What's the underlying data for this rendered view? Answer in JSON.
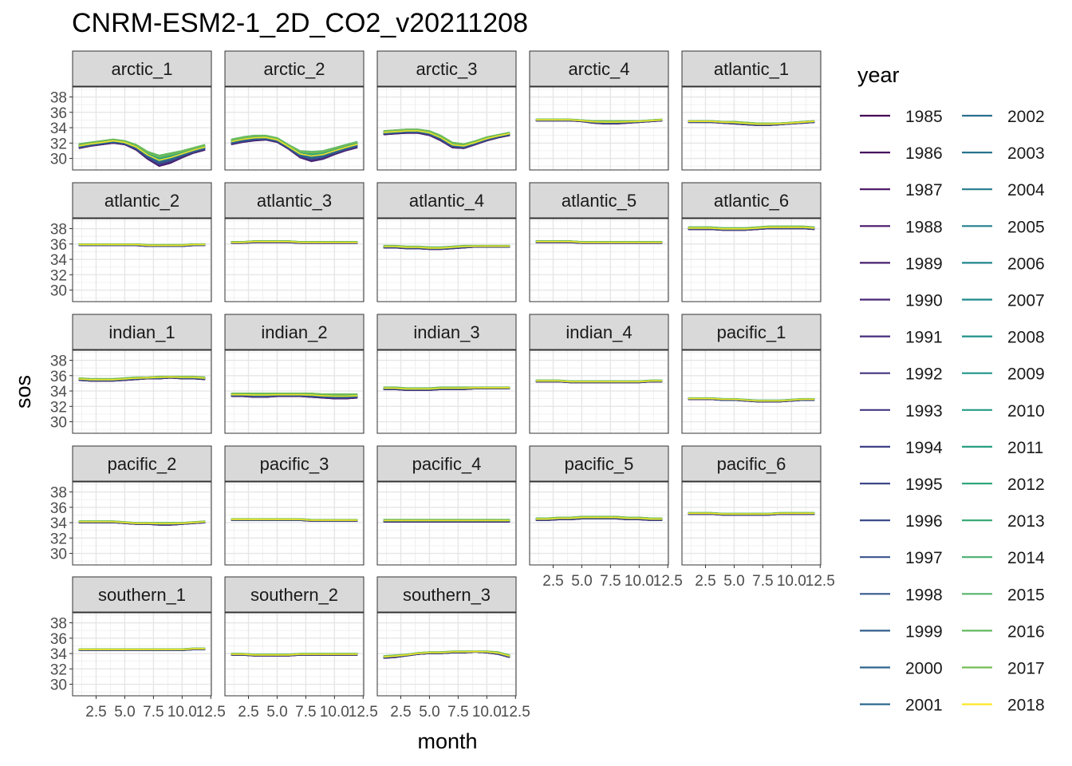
{
  "chart_data": {
    "type": "line",
    "title": "CNRM-ESM2-1_2D_CO2_v20211208",
    "xlabel": "month",
    "ylabel": "sos",
    "legend_title": "year",
    "legend_position": "right",
    "grid": true,
    "x_ticks": [
      2.5,
      5.0,
      7.5,
      10.0,
      12.5
    ],
    "x_tick_labels": [
      "2.5",
      "5.0",
      "7.5",
      "10.0",
      "12.5"
    ],
    "y_ticks": [
      30,
      32,
      34,
      36,
      38
    ],
    "y_tick_labels": [
      "30",
      "32",
      "34",
      "36",
      "38"
    ],
    "xlim": [
      0.45,
      12.55
    ],
    "ylim": [
      28.5,
      39.3
    ],
    "years": [
      "1985",
      "1986",
      "1987",
      "1988",
      "1989",
      "1990",
      "1991",
      "1992",
      "1993",
      "1994",
      "1995",
      "1996",
      "1997",
      "1998",
      "1999",
      "2000",
      "2001",
      "2002",
      "2003",
      "2004",
      "2005",
      "2006",
      "2007",
      "2008",
      "2009",
      "2010",
      "2011",
      "2012",
      "2013",
      "2014",
      "2015",
      "2016",
      "2017",
      "2018"
    ],
    "year_colors": [
      "#440154",
      "#46085C",
      "#471063",
      "#481769",
      "#481E6F",
      "#472575",
      "#462C7B",
      "#45337F",
      "#433983",
      "#404087",
      "#3E468A",
      "#3B4C8B",
      "#38528C",
      "#35588D",
      "#325E8D",
      "#2F648E",
      "#2C698E",
      "#2A6F8E",
      "#27748E",
      "#257A8E",
      "#227F8E",
      "#20858D",
      "#1F8A8C",
      "#1E908A",
      "#1F9588",
      "#229B85",
      "#28A081",
      "#30A57C",
      "#3AAA77",
      "#47AF70",
      "#55B468",
      "#64B85F",
      "#75BD55",
      "#FDE725"
    ],
    "panels": [
      {
        "name": "arctic_1",
        "months": [
          1,
          2,
          3,
          4,
          5,
          6,
          7,
          8,
          9,
          10,
          11,
          12
        ],
        "upper": [
          31.9,
          32.1,
          32.3,
          32.5,
          32.3,
          31.8,
          30.9,
          30.4,
          30.7,
          31.0,
          31.4,
          31.8
        ],
        "lower": [
          31.3,
          31.6,
          31.8,
          32.0,
          31.8,
          31.1,
          29.9,
          29.0,
          29.4,
          30.1,
          30.7,
          31.1
        ]
      },
      {
        "name": "arctic_2",
        "months": [
          1,
          2,
          3,
          4,
          5,
          6,
          7,
          8,
          9,
          10,
          11,
          12
        ],
        "upper": [
          32.5,
          32.8,
          33.0,
          33.0,
          32.7,
          31.8,
          31.0,
          30.9,
          31.0,
          31.4,
          31.8,
          32.2
        ],
        "lower": [
          31.8,
          32.1,
          32.3,
          32.4,
          32.1,
          31.2,
          30.1,
          29.6,
          29.9,
          30.5,
          31.0,
          31.4
        ]
      },
      {
        "name": "arctic_3",
        "months": [
          1,
          2,
          3,
          4,
          5,
          6,
          7,
          8,
          9,
          10,
          11,
          12
        ],
        "upper": [
          33.6,
          33.7,
          33.8,
          33.8,
          33.6,
          33.0,
          32.1,
          31.9,
          32.3,
          32.8,
          33.1,
          33.4
        ],
        "lower": [
          33.1,
          33.2,
          33.3,
          33.3,
          33.0,
          32.3,
          31.4,
          31.3,
          31.8,
          32.3,
          32.7,
          33.0
        ]
      },
      {
        "name": "arctic_4",
        "months": [
          1,
          2,
          3,
          4,
          5,
          6,
          7,
          8,
          9,
          10,
          11,
          12
        ],
        "upper": [
          35.1,
          35.1,
          35.1,
          35.1,
          35.0,
          34.9,
          34.9,
          34.9,
          34.9,
          34.9,
          35.0,
          35.1
        ],
        "lower": [
          34.9,
          34.9,
          34.9,
          34.9,
          34.8,
          34.6,
          34.5,
          34.5,
          34.6,
          34.7,
          34.8,
          34.9
        ]
      },
      {
        "name": "atlantic_1",
        "months": [
          1,
          2,
          3,
          4,
          5,
          6,
          7,
          8,
          9,
          10,
          11,
          12
        ],
        "upper": [
          34.9,
          34.9,
          34.9,
          34.8,
          34.8,
          34.7,
          34.6,
          34.6,
          34.6,
          34.7,
          34.8,
          34.9
        ],
        "lower": [
          34.7,
          34.7,
          34.7,
          34.6,
          34.5,
          34.4,
          34.3,
          34.3,
          34.4,
          34.5,
          34.6,
          34.7
        ]
      },
      {
        "name": "atlantic_2",
        "months": [
          1,
          2,
          3,
          4,
          5,
          6,
          7,
          8,
          9,
          10,
          11,
          12
        ],
        "upper": [
          36.0,
          36.0,
          36.0,
          36.0,
          36.0,
          36.0,
          35.9,
          35.9,
          35.9,
          35.9,
          36.0,
          36.0
        ],
        "lower": [
          35.8,
          35.8,
          35.8,
          35.8,
          35.8,
          35.8,
          35.7,
          35.7,
          35.7,
          35.7,
          35.8,
          35.8
        ]
      },
      {
        "name": "atlantic_3",
        "months": [
          1,
          2,
          3,
          4,
          5,
          6,
          7,
          8,
          9,
          10,
          11,
          12
        ],
        "upper": [
          36.3,
          36.3,
          36.4,
          36.4,
          36.4,
          36.4,
          36.3,
          36.3,
          36.3,
          36.3,
          36.3,
          36.3
        ],
        "lower": [
          36.1,
          36.1,
          36.2,
          36.2,
          36.2,
          36.2,
          36.1,
          36.1,
          36.1,
          36.1,
          36.1,
          36.1
        ]
      },
      {
        "name": "atlantic_4",
        "months": [
          1,
          2,
          3,
          4,
          5,
          6,
          7,
          8,
          9,
          10,
          11,
          12
        ],
        "upper": [
          35.8,
          35.8,
          35.7,
          35.7,
          35.6,
          35.6,
          35.7,
          35.8,
          35.8,
          35.8,
          35.8,
          35.8
        ],
        "lower": [
          35.5,
          35.5,
          35.4,
          35.4,
          35.3,
          35.3,
          35.4,
          35.5,
          35.6,
          35.6,
          35.6,
          35.6
        ]
      },
      {
        "name": "atlantic_5",
        "months": [
          1,
          2,
          3,
          4,
          5,
          6,
          7,
          8,
          9,
          10,
          11,
          12
        ],
        "upper": [
          36.4,
          36.4,
          36.4,
          36.4,
          36.3,
          36.3,
          36.3,
          36.3,
          36.3,
          36.3,
          36.3,
          36.3
        ],
        "lower": [
          36.2,
          36.2,
          36.2,
          36.2,
          36.1,
          36.1,
          36.1,
          36.1,
          36.1,
          36.1,
          36.1,
          36.1
        ]
      },
      {
        "name": "atlantic_6",
        "months": [
          1,
          2,
          3,
          4,
          5,
          6,
          7,
          8,
          9,
          10,
          11,
          12
        ],
        "upper": [
          38.2,
          38.2,
          38.2,
          38.1,
          38.1,
          38.1,
          38.2,
          38.3,
          38.3,
          38.3,
          38.3,
          38.2
        ],
        "lower": [
          37.9,
          37.9,
          37.9,
          37.8,
          37.8,
          37.8,
          37.9,
          38.0,
          38.0,
          38.0,
          38.0,
          37.9
        ]
      },
      {
        "name": "indian_1",
        "months": [
          1,
          2,
          3,
          4,
          5,
          6,
          7,
          8,
          9,
          10,
          11,
          12
        ],
        "upper": [
          35.7,
          35.6,
          35.6,
          35.6,
          35.7,
          35.8,
          35.8,
          35.9,
          35.9,
          35.9,
          35.9,
          35.8
        ],
        "lower": [
          35.4,
          35.3,
          35.3,
          35.3,
          35.4,
          35.5,
          35.6,
          35.6,
          35.7,
          35.6,
          35.6,
          35.5
        ]
      },
      {
        "name": "indian_2",
        "months": [
          1,
          2,
          3,
          4,
          5,
          6,
          7,
          8,
          9,
          10,
          11,
          12
        ],
        "upper": [
          33.7,
          33.7,
          33.7,
          33.7,
          33.7,
          33.7,
          33.7,
          33.7,
          33.6,
          33.6,
          33.6,
          33.6
        ],
        "lower": [
          33.3,
          33.3,
          33.2,
          33.2,
          33.3,
          33.3,
          33.3,
          33.2,
          33.1,
          33.0,
          33.0,
          33.1
        ]
      },
      {
        "name": "indian_3",
        "months": [
          1,
          2,
          3,
          4,
          5,
          6,
          7,
          8,
          9,
          10,
          11,
          12
        ],
        "upper": [
          34.5,
          34.5,
          34.4,
          34.4,
          34.4,
          34.5,
          34.5,
          34.5,
          34.5,
          34.5,
          34.5,
          34.5
        ],
        "lower": [
          34.2,
          34.2,
          34.1,
          34.1,
          34.1,
          34.2,
          34.2,
          34.2,
          34.3,
          34.3,
          34.3,
          34.3
        ]
      },
      {
        "name": "indian_4",
        "months": [
          1,
          2,
          3,
          4,
          5,
          6,
          7,
          8,
          9,
          10,
          11,
          12
        ],
        "upper": [
          35.4,
          35.4,
          35.4,
          35.3,
          35.3,
          35.3,
          35.3,
          35.3,
          35.3,
          35.3,
          35.4,
          35.4
        ],
        "lower": [
          35.2,
          35.2,
          35.2,
          35.1,
          35.1,
          35.1,
          35.1,
          35.1,
          35.1,
          35.1,
          35.2,
          35.2
        ]
      },
      {
        "name": "pacific_1",
        "months": [
          1,
          2,
          3,
          4,
          5,
          6,
          7,
          8,
          9,
          10,
          11,
          12
        ],
        "upper": [
          33.1,
          33.1,
          33.1,
          33.0,
          33.0,
          32.9,
          32.8,
          32.8,
          32.8,
          32.9,
          33.0,
          33.0
        ],
        "lower": [
          32.9,
          32.9,
          32.9,
          32.8,
          32.8,
          32.7,
          32.6,
          32.6,
          32.6,
          32.7,
          32.8,
          32.8
        ]
      },
      {
        "name": "pacific_2",
        "months": [
          1,
          2,
          3,
          4,
          5,
          6,
          7,
          8,
          9,
          10,
          11,
          12
        ],
        "upper": [
          34.2,
          34.2,
          34.2,
          34.2,
          34.1,
          34.0,
          34.0,
          34.0,
          34.0,
          34.0,
          34.1,
          34.2
        ],
        "lower": [
          34.0,
          34.0,
          34.0,
          34.0,
          33.9,
          33.8,
          33.8,
          33.7,
          33.7,
          33.8,
          33.9,
          34.0
        ]
      },
      {
        "name": "pacific_3",
        "months": [
          1,
          2,
          3,
          4,
          5,
          6,
          7,
          8,
          9,
          10,
          11,
          12
        ],
        "upper": [
          34.5,
          34.5,
          34.5,
          34.5,
          34.5,
          34.5,
          34.5,
          34.4,
          34.4,
          34.4,
          34.4,
          34.4
        ],
        "lower": [
          34.3,
          34.3,
          34.3,
          34.3,
          34.3,
          34.3,
          34.3,
          34.2,
          34.2,
          34.2,
          34.2,
          34.2
        ]
      },
      {
        "name": "pacific_4",
        "months": [
          1,
          2,
          3,
          4,
          5,
          6,
          7,
          8,
          9,
          10,
          11,
          12
        ],
        "upper": [
          34.4,
          34.4,
          34.4,
          34.4,
          34.4,
          34.4,
          34.4,
          34.4,
          34.4,
          34.4,
          34.4,
          34.4
        ],
        "lower": [
          34.1,
          34.1,
          34.1,
          34.1,
          34.1,
          34.1,
          34.1,
          34.1,
          34.1,
          34.1,
          34.1,
          34.1
        ]
      },
      {
        "name": "pacific_5",
        "months": [
          1,
          2,
          3,
          4,
          5,
          6,
          7,
          8,
          9,
          10,
          11,
          12
        ],
        "upper": [
          34.6,
          34.6,
          34.7,
          34.7,
          34.8,
          34.8,
          34.8,
          34.8,
          34.7,
          34.7,
          34.6,
          34.6
        ],
        "lower": [
          34.3,
          34.3,
          34.4,
          34.4,
          34.5,
          34.5,
          34.5,
          34.5,
          34.4,
          34.4,
          34.3,
          34.3
        ]
      },
      {
        "name": "pacific_6",
        "months": [
          1,
          2,
          3,
          4,
          5,
          6,
          7,
          8,
          9,
          10,
          11,
          12
        ],
        "upper": [
          35.3,
          35.3,
          35.3,
          35.2,
          35.2,
          35.2,
          35.2,
          35.2,
          35.3,
          35.3,
          35.3,
          35.3
        ],
        "lower": [
          35.1,
          35.1,
          35.1,
          35.0,
          35.0,
          35.0,
          35.0,
          35.0,
          35.1,
          35.1,
          35.1,
          35.1
        ]
      },
      {
        "name": "southern_1",
        "months": [
          1,
          2,
          3,
          4,
          5,
          6,
          7,
          8,
          9,
          10,
          11,
          12
        ],
        "upper": [
          34.6,
          34.6,
          34.6,
          34.6,
          34.6,
          34.6,
          34.6,
          34.6,
          34.6,
          34.6,
          34.7,
          34.7
        ],
        "lower": [
          34.4,
          34.4,
          34.4,
          34.4,
          34.4,
          34.4,
          34.4,
          34.4,
          34.4,
          34.4,
          34.5,
          34.5
        ]
      },
      {
        "name": "southern_2",
        "months": [
          1,
          2,
          3,
          4,
          5,
          6,
          7,
          8,
          9,
          10,
          11,
          12
        ],
        "upper": [
          34.0,
          34.0,
          33.9,
          33.9,
          33.9,
          33.9,
          34.0,
          34.0,
          34.0,
          34.0,
          34.0,
          34.0
        ],
        "lower": [
          33.8,
          33.8,
          33.7,
          33.7,
          33.7,
          33.7,
          33.8,
          33.8,
          33.8,
          33.8,
          33.8,
          33.8
        ]
      },
      {
        "name": "southern_3",
        "months": [
          1,
          2,
          3,
          4,
          5,
          6,
          7,
          8,
          9,
          10,
          11,
          12
        ],
        "upper": [
          33.7,
          33.8,
          33.9,
          34.1,
          34.2,
          34.2,
          34.3,
          34.3,
          34.3,
          34.3,
          34.2,
          33.8
        ],
        "lower": [
          33.4,
          33.5,
          33.7,
          33.9,
          34.0,
          34.0,
          34.1,
          34.1,
          34.2,
          34.1,
          33.9,
          33.5
        ]
      }
    ]
  }
}
